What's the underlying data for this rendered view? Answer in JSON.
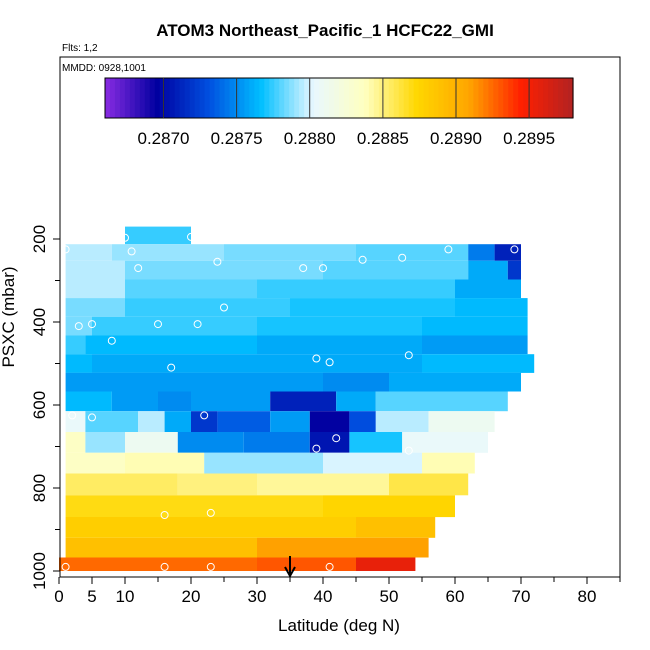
{
  "chart_data": {
    "type": "heatmap",
    "title": "ATOM3 Northeast_Pacific_1 HCFC22_GMI",
    "flights_label": "Flts: 1,2",
    "date_label": "MMDD: 0928,1001",
    "xlabel": "Latitude (deg N)",
    "ylabel": "PSXC (mbar)",
    "xlim": [
      0,
      85
    ],
    "ylim": [
      1000,
      100
    ],
    "x_ticks": [
      0,
      5,
      10,
      20,
      30,
      40,
      50,
      60,
      70,
      80
    ],
    "y_ticks": [
      200,
      400,
      600,
      800,
      1000
    ],
    "colorbar": {
      "vmin": 0.2866,
      "vmax": 0.2898,
      "ticks": [
        0.287,
        0.2875,
        0.288,
        0.2885,
        0.289,
        0.2895
      ],
      "tick_labels": [
        "0.2870",
        "0.2875",
        "0.2880",
        "0.2885",
        "0.2890",
        "0.2895"
      ],
      "colors": [
        "#8a2be2",
        "#0000a0",
        "#0050e0",
        "#00bfff",
        "#e8f8ff",
        "#ffffc0",
        "#ffd700",
        "#ffa500",
        "#ff2000",
        "#b22222"
      ]
    },
    "grid": false,
    "marker_arrow_latitude": 35,
    "rows": [
      {
        "p": 195,
        "segments": [
          [
            10,
            20,
            0.28775
          ]
        ]
      },
      {
        "p": 230,
        "segments": [
          [
            1,
            8,
            0.28795
          ],
          [
            8,
            25,
            0.2879
          ],
          [
            25,
            45,
            0.28785
          ],
          [
            45,
            62,
            0.2878
          ],
          [
            62,
            66,
            0.28745
          ],
          [
            66,
            70,
            0.2871
          ]
        ]
      },
      {
        "p": 275,
        "segments": [
          [
            1,
            10,
            0.28795
          ],
          [
            10,
            40,
            0.28785
          ],
          [
            40,
            62,
            0.2878
          ],
          [
            62,
            68,
            0.2876
          ],
          [
            68,
            70,
            0.2872
          ]
        ]
      },
      {
        "p": 320,
        "segments": [
          [
            1,
            10,
            0.28795
          ],
          [
            10,
            30,
            0.2878
          ],
          [
            30,
            60,
            0.28775
          ],
          [
            60,
            70,
            0.2876
          ]
        ]
      },
      {
        "p": 365,
        "segments": [
          [
            1,
            10,
            0.28785
          ],
          [
            10,
            35,
            0.28775
          ],
          [
            35,
            60,
            0.2877
          ],
          [
            60,
            71,
            0.28765
          ]
        ]
      },
      {
        "p": 410,
        "segments": [
          [
            1,
            5,
            0.28785
          ],
          [
            5,
            30,
            0.28775
          ],
          [
            30,
            55,
            0.2877
          ],
          [
            55,
            71,
            0.28765
          ]
        ]
      },
      {
        "p": 455,
        "segments": [
          [
            1,
            4,
            0.28775
          ],
          [
            4,
            30,
            0.28765
          ],
          [
            30,
            55,
            0.2876
          ],
          [
            55,
            71,
            0.28755
          ]
        ]
      },
      {
        "p": 500,
        "segments": [
          [
            1,
            5,
            0.28765
          ],
          [
            5,
            30,
            0.2876
          ],
          [
            30,
            55,
            0.2876
          ],
          [
            55,
            72,
            0.28765
          ]
        ]
      },
      {
        "p": 545,
        "segments": [
          [
            1,
            10,
            0.28755
          ],
          [
            10,
            40,
            0.28755
          ],
          [
            40,
            50,
            0.2875
          ],
          [
            50,
            70,
            0.2876
          ]
        ]
      },
      {
        "p": 590,
        "segments": [
          [
            1,
            8,
            0.28765
          ],
          [
            8,
            15,
            0.28755
          ],
          [
            15,
            20,
            0.2875
          ],
          [
            20,
            32,
            0.28755
          ],
          [
            32,
            42,
            0.2871
          ],
          [
            42,
            48,
            0.2876
          ],
          [
            48,
            68,
            0.2878
          ]
        ]
      },
      {
        "p": 640,
        "segments": [
          [
            1,
            4,
            0.28805
          ],
          [
            4,
            12,
            0.2878
          ],
          [
            12,
            16,
            0.28795
          ],
          [
            16,
            20,
            0.2876
          ],
          [
            20,
            24,
            0.2872
          ],
          [
            24,
            32,
            0.28735
          ],
          [
            32,
            38,
            0.28755
          ],
          [
            38,
            44,
            0.28695
          ],
          [
            44,
            48,
            0.2873
          ],
          [
            48,
            56,
            0.28795
          ],
          [
            56,
            66,
            0.2881
          ]
        ]
      },
      {
        "p": 690,
        "segments": [
          [
            1,
            4,
            0.28835
          ],
          [
            4,
            10,
            0.2879
          ],
          [
            10,
            18,
            0.2881
          ],
          [
            18,
            28,
            0.2875
          ],
          [
            28,
            38,
            0.28745
          ],
          [
            38,
            44,
            0.28705
          ],
          [
            44,
            52,
            0.2877
          ],
          [
            52,
            65,
            0.28805
          ]
        ]
      },
      {
        "p": 740,
        "segments": [
          [
            1,
            10,
            0.28835
          ],
          [
            10,
            22,
            0.2884
          ],
          [
            22,
            40,
            0.2879
          ],
          [
            40,
            55,
            0.288
          ],
          [
            55,
            63,
            0.2884
          ]
        ]
      },
      {
        "p": 790,
        "segments": [
          [
            1,
            18,
            0.28855
          ],
          [
            18,
            30,
            0.2885
          ],
          [
            30,
            50,
            0.28845
          ],
          [
            50,
            62,
            0.2886
          ]
        ]
      },
      {
        "p": 845,
        "segments": [
          [
            1,
            20,
            0.2887
          ],
          [
            20,
            40,
            0.2887
          ],
          [
            40,
            60,
            0.28875
          ]
        ]
      },
      {
        "p": 895,
        "segments": [
          [
            1,
            25,
            0.2888
          ],
          [
            25,
            45,
            0.2888
          ],
          [
            45,
            57,
            0.2889
          ]
        ]
      },
      {
        "p": 945,
        "segments": [
          [
            1,
            30,
            0.2889
          ],
          [
            30,
            56,
            0.2891
          ]
        ]
      },
      {
        "p": 990,
        "segments": [
          [
            0,
            30,
            0.28925
          ],
          [
            30,
            45,
            0.2893
          ],
          [
            45,
            54,
            0.28955
          ]
        ]
      }
    ],
    "sample_points": [
      [
        10,
        197
      ],
      [
        20,
        195
      ],
      [
        11,
        230
      ],
      [
        12,
        270
      ],
      [
        24,
        255
      ],
      [
        1,
        225
      ],
      [
        37,
        270
      ],
      [
        40,
        270
      ],
      [
        46,
        250
      ],
      [
        52,
        245
      ],
      [
        59,
        225
      ],
      [
        69,
        225
      ],
      [
        25,
        365
      ],
      [
        3,
        410
      ],
      [
        5,
        405
      ],
      [
        15,
        405
      ],
      [
        21,
        405
      ],
      [
        8,
        445
      ],
      [
        39,
        488
      ],
      [
        41,
        497
      ],
      [
        53,
        480
      ],
      [
        72,
        465
      ],
      [
        17,
        510
      ],
      [
        0,
        505
      ],
      [
        2,
        625
      ],
      [
        5,
        630
      ],
      [
        22,
        625
      ],
      [
        39,
        705
      ],
      [
        42,
        680
      ],
      [
        53,
        710
      ],
      [
        16,
        865
      ],
      [
        23,
        860
      ],
      [
        1,
        990
      ],
      [
        16,
        990
      ],
      [
        23,
        990
      ],
      [
        41,
        990
      ]
    ]
  }
}
